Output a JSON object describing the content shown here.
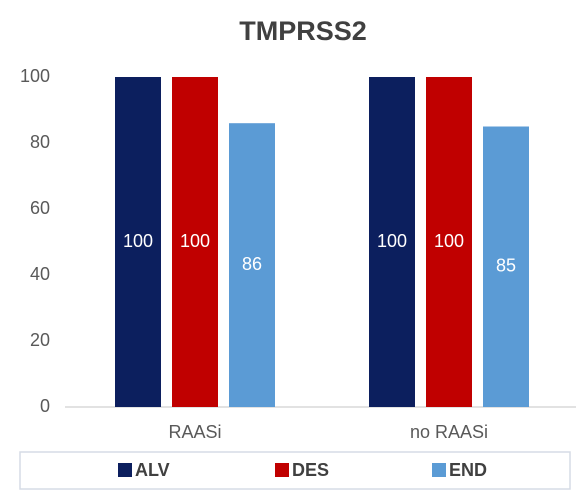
{
  "chart_data": {
    "type": "bar",
    "title": "TMPRSS2",
    "categories": [
      "RAASi",
      "no RAASi"
    ],
    "series": [
      {
        "name": "ALV",
        "color": "#0c1f5e",
        "values": [
          100,
          100
        ]
      },
      {
        "name": "DES",
        "color": "#c00000",
        "values": [
          100,
          100
        ]
      },
      {
        "name": "END",
        "color": "#5b9bd5",
        "values": [
          86,
          85
        ]
      }
    ],
    "ylim": [
      0,
      100
    ],
    "yticks": [
      0,
      20,
      40,
      60,
      80,
      100
    ],
    "grid": false,
    "legend": "bottom"
  }
}
